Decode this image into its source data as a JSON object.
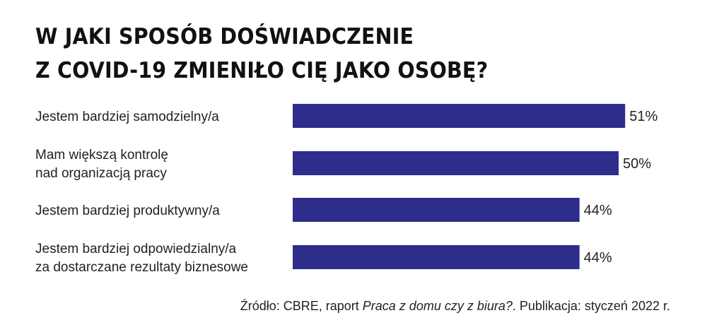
{
  "title": {
    "line1": "W JAKI SPOSÓB DOŚWIADCZENIE",
    "line2": "Z COVID-19 ZMIENIŁO CIĘ JAKO OSOBĘ?"
  },
  "chart_data": {
    "type": "bar",
    "orientation": "horizontal",
    "categories": [
      [
        "Jestem bardziej samodzielny/a"
      ],
      [
        "Mam większą kontrolę",
        "nad organizacją pracy"
      ],
      [
        "Jestem bardziej produktywny/a"
      ],
      [
        "Jestem bardziej odpowiedzialny/a",
        "za dostarczane rezultaty biznesowe"
      ]
    ],
    "values": [
      51,
      50,
      44,
      44
    ],
    "value_labels": [
      "51%",
      "50%",
      "44%",
      "44%"
    ],
    "unit": "%",
    "bar_color": "#2e2d8c",
    "grid": false,
    "legend": "none"
  },
  "source": {
    "prefix": "Źródło: CBRE, raport ",
    "report": "Praca z domu czy z biura?",
    "suffix": ". Publikacja: styczeń 2022 r."
  }
}
